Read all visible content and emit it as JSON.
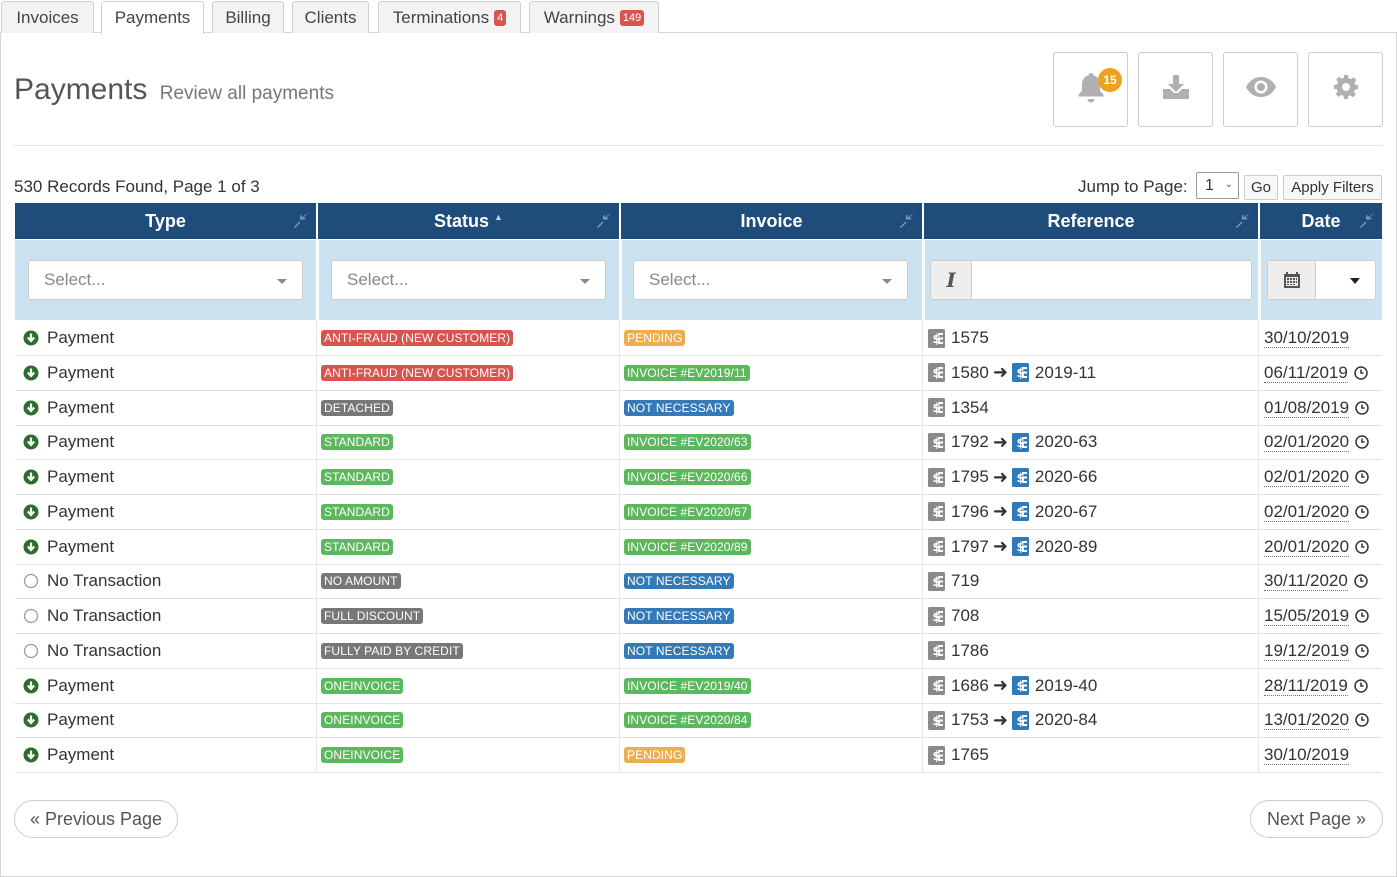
{
  "tabs": [
    {
      "label": "Invoices",
      "badge": ""
    },
    {
      "label": "Payments",
      "badge": ""
    },
    {
      "label": "Billing",
      "badge": ""
    },
    {
      "label": "Clients",
      "badge": ""
    },
    {
      "label": "Terminations",
      "badge": "4"
    },
    {
      "label": "Warnings",
      "badge": "149"
    }
  ],
  "header": {
    "title": "Payments",
    "subtitle": "Review all payments",
    "notification_count": "15"
  },
  "records_summary": "530 Records Found, Page 1 of 3",
  "jump": {
    "label": "Jump to Page:",
    "value": "1",
    "go_label": "Go",
    "apply_label": "Apply Filters"
  },
  "columns": [
    {
      "label": "Type"
    },
    {
      "label": "Status"
    },
    {
      "label": "Invoice"
    },
    {
      "label": "Reference"
    },
    {
      "label": "Date"
    }
  ],
  "filters": {
    "type_placeholder": "Select...",
    "status_placeholder": "Select...",
    "invoice_placeholder": "Select...",
    "reference_mode": "I",
    "reference_value": ""
  },
  "colors": {
    "header_bg": "#1e4d7c",
    "filter_bg": "#cde2f0",
    "red": "#d9534f",
    "green": "#5cb85c",
    "gray": "#777777",
    "orange": "#f0ad4e",
    "blue": "#337ab7"
  },
  "rows": [
    {
      "type": "Payment",
      "type_icon": "arrow-down-circle-icon",
      "status": "ANTI-FRAUD (NEW CUSTOMER)",
      "status_color": "#d9534f",
      "invoice": "PENDING",
      "invoice_color": "#f0ad4e",
      "ref": "1575",
      "ref_to": "",
      "date": "30/10/2019",
      "clock": false
    },
    {
      "type": "Payment",
      "type_icon": "arrow-down-circle-icon",
      "status": "ANTI-FRAUD (NEW CUSTOMER)",
      "status_color": "#d9534f",
      "invoice": "INVOICE #EV2019/11",
      "invoice_color": "#5cb85c",
      "ref": "1580",
      "ref_to": "2019-11",
      "date": "06/11/2019",
      "clock": true
    },
    {
      "type": "Payment",
      "type_icon": "arrow-down-circle-icon",
      "status": "DETACHED",
      "status_color": "#777777",
      "invoice": "NOT NECESSARY",
      "invoice_color": "#337ab7",
      "ref": "1354",
      "ref_to": "",
      "date": "01/08/2019",
      "clock": true
    },
    {
      "type": "Payment",
      "type_icon": "arrow-down-circle-icon",
      "status": "STANDARD",
      "status_color": "#5cb85c",
      "invoice": "INVOICE #EV2020/63",
      "invoice_color": "#5cb85c",
      "ref": "1792",
      "ref_to": "2020-63",
      "date": "02/01/2020",
      "clock": true
    },
    {
      "type": "Payment",
      "type_icon": "arrow-down-circle-icon",
      "status": "STANDARD",
      "status_color": "#5cb85c",
      "invoice": "INVOICE #EV2020/66",
      "invoice_color": "#5cb85c",
      "ref": "1795",
      "ref_to": "2020-66",
      "date": "02/01/2020",
      "clock": true
    },
    {
      "type": "Payment",
      "type_icon": "arrow-down-circle-icon",
      "status": "STANDARD",
      "status_color": "#5cb85c",
      "invoice": "INVOICE #EV2020/67",
      "invoice_color": "#5cb85c",
      "ref": "1796",
      "ref_to": "2020-67",
      "date": "02/01/2020",
      "clock": true
    },
    {
      "type": "Payment",
      "type_icon": "arrow-down-circle-icon",
      "status": "STANDARD",
      "status_color": "#5cb85c",
      "invoice": "INVOICE #EV2020/89",
      "invoice_color": "#5cb85c",
      "ref": "1797",
      "ref_to": "2020-89",
      "date": "20/01/2020",
      "clock": true
    },
    {
      "type": "No Transaction",
      "type_icon": "empty-circle-icon",
      "status": "NO AMOUNT",
      "status_color": "#777777",
      "invoice": "NOT NECESSARY",
      "invoice_color": "#337ab7",
      "ref": "719",
      "ref_to": "",
      "date": "30/11/2020",
      "clock": true
    },
    {
      "type": "No Transaction",
      "type_icon": "empty-circle-icon",
      "status": "FULL DISCOUNT",
      "status_color": "#777777",
      "invoice": "NOT NECESSARY",
      "invoice_color": "#337ab7",
      "ref": "708",
      "ref_to": "",
      "date": "15/05/2019",
      "clock": true
    },
    {
      "type": "No Transaction",
      "type_icon": "empty-circle-icon",
      "status": "FULLY PAID BY CREDIT",
      "status_color": "#777777",
      "invoice": "NOT NECESSARY",
      "invoice_color": "#337ab7",
      "ref": "1786",
      "ref_to": "",
      "date": "19/12/2019",
      "clock": true
    },
    {
      "type": "Payment",
      "type_icon": "arrow-down-circle-icon",
      "status": "ONEINVOICE",
      "status_color": "#5cb85c",
      "invoice": "INVOICE #EV2019/40",
      "invoice_color": "#5cb85c",
      "ref": "1686",
      "ref_to": "2019-40",
      "date": "28/11/2019",
      "clock": true
    },
    {
      "type": "Payment",
      "type_icon": "arrow-down-circle-icon",
      "status": "ONEINVOICE",
      "status_color": "#5cb85c",
      "invoice": "INVOICE #EV2020/84",
      "invoice_color": "#5cb85c",
      "ref": "1753",
      "ref_to": "2020-84",
      "date": "13/01/2020",
      "clock": true
    },
    {
      "type": "Payment",
      "type_icon": "arrow-down-circle-icon",
      "status": "ONEINVOICE",
      "status_color": "#5cb85c",
      "invoice": "PENDING",
      "invoice_color": "#f0ad4e",
      "ref": "1765",
      "ref_to": "",
      "date": "30/10/2019",
      "clock": false
    }
  ],
  "pagination": {
    "prev_label": "« Previous Page",
    "next_label": "Next Page »"
  }
}
